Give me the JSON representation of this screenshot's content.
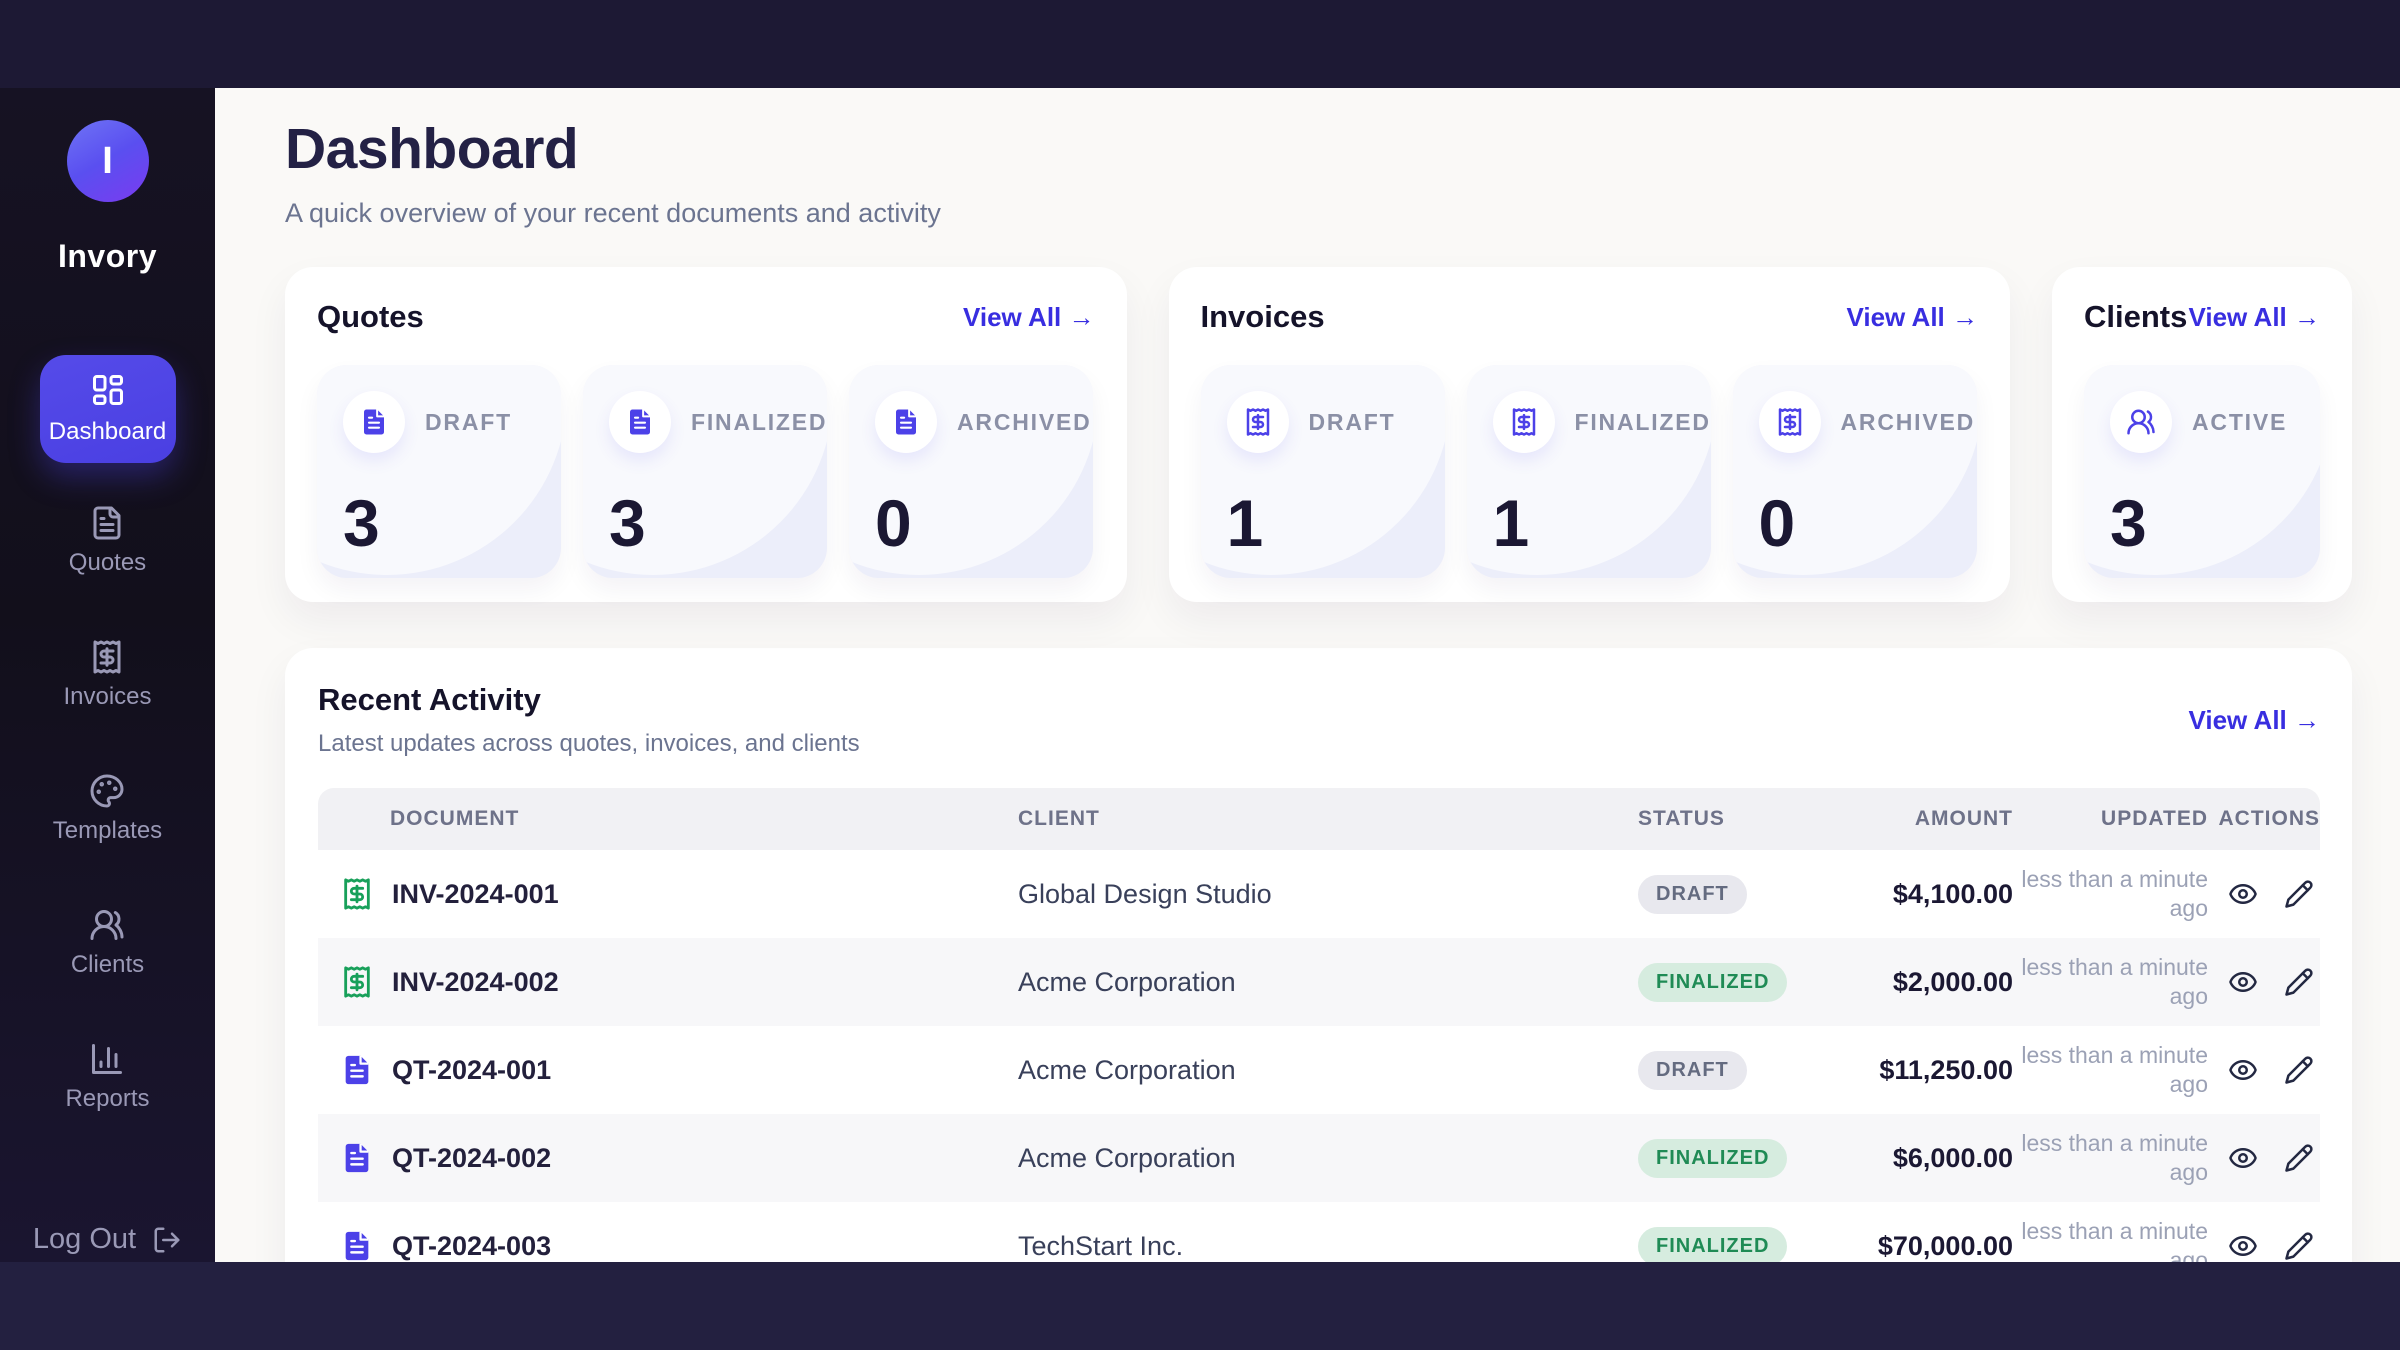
{
  "app": {
    "name": "Invory",
    "logo_letter": "I"
  },
  "colors": {
    "accent_indigo": "#4c41e8",
    "link_blue": "#382ee0",
    "badge_draft_bg": "#e8e8ee",
    "badge_draft_text": "#646b80",
    "badge_finalized_bg": "#d6ecdf",
    "badge_finalized_text": "#1f8b55",
    "invoice_icon_green": "#18a05a",
    "sidebar_dark": "#14101f",
    "content_bg": "#faf9f7"
  },
  "sidebar": {
    "items": [
      {
        "label": "Dashboard",
        "icon": "layout-dashboard-icon",
        "active": true
      },
      {
        "label": "Quotes",
        "icon": "file-text-icon",
        "active": false
      },
      {
        "label": "Invoices",
        "icon": "receipt-icon",
        "active": false
      },
      {
        "label": "Templates",
        "icon": "palette-icon",
        "active": false
      },
      {
        "label": "Clients",
        "icon": "users-icon",
        "active": false
      },
      {
        "label": "Reports",
        "icon": "bar-chart-icon",
        "active": false
      }
    ],
    "logout_label": "Log Out"
  },
  "header": {
    "title": "Dashboard",
    "subtitle": "A quick overview of your recent documents and activity"
  },
  "summary_cards": [
    {
      "title": "Quotes",
      "view_all": "View All →",
      "icon": "file-quote",
      "tiles": [
        {
          "label": "DRAFT",
          "value": "3"
        },
        {
          "label": "FINALIZED",
          "value": "3"
        },
        {
          "label": "ARCHIVED",
          "value": "0"
        }
      ]
    },
    {
      "title": "Invoices",
      "view_all": "View All →",
      "icon": "receipt",
      "tiles": [
        {
          "label": "DRAFT",
          "value": "1"
        },
        {
          "label": "FINALIZED",
          "value": "1"
        },
        {
          "label": "ARCHIVED",
          "value": "0"
        }
      ]
    },
    {
      "title": "Clients",
      "view_all": "View All →",
      "icon": "users",
      "tiles": [
        {
          "label": "ACTIVE",
          "value": "3"
        }
      ]
    }
  ],
  "recent_activity": {
    "title": "Recent Activity",
    "subtitle": "Latest updates across quotes, invoices, and clients",
    "view_all": "View All →",
    "columns": [
      "DOCUMENT",
      "CLIENT",
      "STATUS",
      "AMOUNT",
      "UPDATED",
      "ACTIONS"
    ],
    "rows": [
      {
        "document": "INV-2024-001",
        "type": "invoice",
        "client": "Global Design Studio",
        "status": "DRAFT",
        "amount": "$4,100.00",
        "updated": "less than a minute ago"
      },
      {
        "document": "INV-2024-002",
        "type": "invoice",
        "client": "Acme Corporation",
        "status": "FINALIZED",
        "amount": "$2,000.00",
        "updated": "less than a minute ago"
      },
      {
        "document": "QT-2024-001",
        "type": "quote",
        "client": "Acme Corporation",
        "status": "DRAFT",
        "amount": "$11,250.00",
        "updated": "less than a minute ago"
      },
      {
        "document": "QT-2024-002",
        "type": "quote",
        "client": "Acme Corporation",
        "status": "FINALIZED",
        "amount": "$6,000.00",
        "updated": "less than a minute ago"
      },
      {
        "document": "QT-2024-003",
        "type": "quote",
        "client": "TechStart Inc.",
        "status": "FINALIZED",
        "amount": "$70,000.00",
        "updated": "less than a minute ago"
      }
    ]
  }
}
